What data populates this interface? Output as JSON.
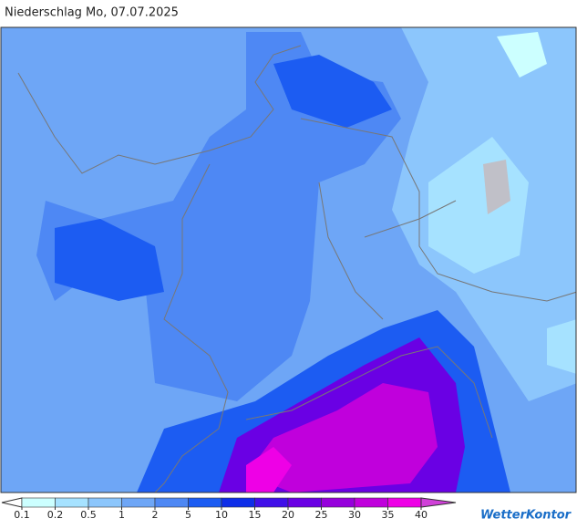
{
  "title": "Niederschlag Mo, 07.07.2025",
  "legend": {
    "ticks": [
      0.1,
      0.2,
      0.5,
      1,
      2,
      5,
      10,
      15,
      20,
      25,
      30,
      35,
      40
    ],
    "below_color": "#ffffff",
    "colors": [
      "#ccffff",
      "#a6e2ff",
      "#8cc6fc",
      "#6ea6f6",
      "#4e88f4",
      "#1c5cf2",
      "#0e2ee8",
      "#4010e8",
      "#6a00e4",
      "#9600dc",
      "#c000dc",
      "#ee00e6"
    ],
    "above_color": "#d040d8"
  },
  "brand": "WetterKontor"
}
